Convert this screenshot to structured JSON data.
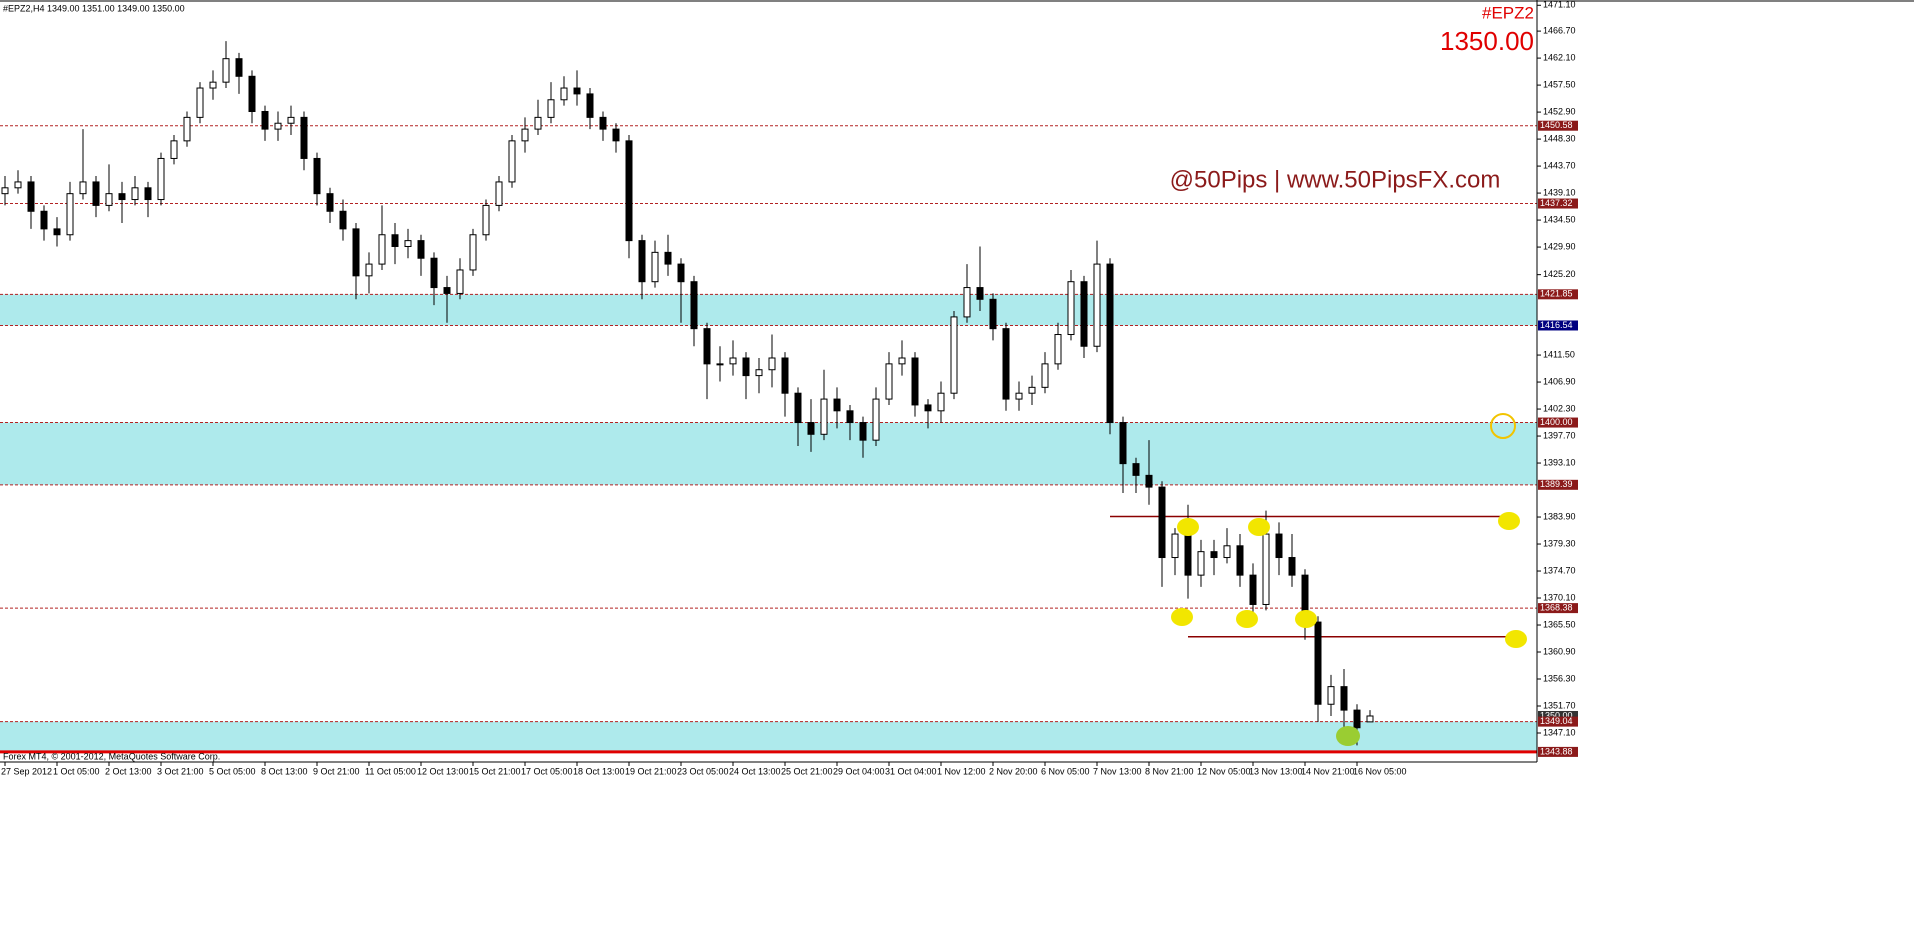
{
  "chart_data": {
    "type": "candlestick",
    "header": "#EPZ2,H4  1349.00 1351.00 1349.00 1350.00",
    "symbol": "#EPZ2",
    "price": "1350.00",
    "watermark": "@50Pips | www.50PipsFX.com",
    "copyright": "Forex MT4, © 2001-2012, MetaQuotes Software Corp.",
    "categories": [
      "27 Sep 2012",
      null,
      null,
      null,
      "1 Oct 05:00",
      null,
      null,
      null,
      "2 Oct 13:00",
      null,
      null,
      null,
      "3 Oct 21:00",
      null,
      null,
      null,
      "5 Oct 05:00",
      null,
      null,
      null,
      "8 Oct 13:00",
      null,
      null,
      null,
      "9 Oct 21:00",
      null,
      null,
      null,
      "11 Oct 05:00",
      null,
      null,
      null,
      "12 Oct 13:00",
      null,
      null,
      null,
      "15 Oct 21:00",
      null,
      null,
      null,
      "17 Oct 05:00",
      null,
      null,
      null,
      "18 Oct 13:00",
      null,
      null,
      null,
      "19 Oct 21:00",
      null,
      null,
      null,
      "23 Oct 05:00",
      null,
      null,
      null,
      "24 Oct 13:00",
      null,
      null,
      null,
      "25 Oct 21:00",
      null,
      null,
      null,
      "29 Oct 04:00",
      null,
      null,
      null,
      "31 Oct 04:00",
      null,
      null,
      null,
      "1 Nov 12:00",
      null,
      null,
      null,
      "2 Nov 20:00",
      null,
      null,
      null,
      "6 Nov 05:00",
      null,
      null,
      null,
      "7 Nov 13:00",
      null,
      null,
      null,
      "8 Nov 21:00",
      null,
      null,
      null,
      "12 Nov 05:00",
      null,
      null,
      null,
      "13 Nov 13:00",
      null,
      null,
      null,
      "14 Nov 21:00",
      null,
      null,
      null,
      "16 Nov 05:00",
      null
    ],
    "ohlc": [
      [
        1439,
        1442,
        1437,
        1440
      ],
      [
        1440,
        1443,
        1439,
        1441
      ],
      [
        1441,
        1442,
        1433,
        1436
      ],
      [
        1436,
        1437,
        1431,
        1433
      ],
      [
        1433,
        1435,
        1430,
        1432
      ],
      [
        1432,
        1441,
        1431,
        1439
      ],
      [
        1439,
        1450,
        1438,
        1441
      ],
      [
        1441,
        1442,
        1435,
        1437
      ],
      [
        1437,
        1444,
        1436,
        1439
      ],
      [
        1439,
        1441,
        1434,
        1438
      ],
      [
        1438,
        1442,
        1437,
        1440
      ],
      [
        1440,
        1441,
        1435,
        1438
      ],
      [
        1438,
        1446,
        1437,
        1445
      ],
      [
        1445,
        1449,
        1444,
        1448
      ],
      [
        1448,
        1453,
        1447,
        1452
      ],
      [
        1452,
        1458,
        1451,
        1457
      ],
      [
        1457,
        1460,
        1455,
        1458
      ],
      [
        1458,
        1465,
        1457,
        1462
      ],
      [
        1462,
        1463,
        1456,
        1459
      ],
      [
        1459,
        1460,
        1451,
        1453
      ],
      [
        1453,
        1454,
        1448,
        1450
      ],
      [
        1450,
        1453,
        1448,
        1451
      ],
      [
        1451,
        1454,
        1449,
        1452
      ],
      [
        1452,
        1453,
        1443,
        1445
      ],
      [
        1445,
        1446,
        1437,
        1439
      ],
      [
        1439,
        1440,
        1434,
        1436
      ],
      [
        1436,
        1438,
        1431,
        1433
      ],
      [
        1433,
        1434,
        1421,
        1425
      ],
      [
        1425,
        1429,
        1422,
        1427
      ],
      [
        1427,
        1437,
        1426,
        1432
      ],
      [
        1432,
        1434,
        1427,
        1430
      ],
      [
        1430,
        1433,
        1428,
        1431
      ],
      [
        1431,
        1432,
        1425,
        1428
      ],
      [
        1428,
        1429,
        1420,
        1423
      ],
      [
        1423,
        1425,
        1417,
        1422
      ],
      [
        1422,
        1428,
        1421,
        1426
      ],
      [
        1426,
        1433,
        1425,
        1432
      ],
      [
        1432,
        1438,
        1431,
        1437
      ],
      [
        1437,
        1442,
        1436,
        1441
      ],
      [
        1441,
        1449,
        1440,
        1448
      ],
      [
        1448,
        1452,
        1446,
        1450
      ],
      [
        1450,
        1455,
        1449,
        1452
      ],
      [
        1452,
        1458,
        1451,
        1455
      ],
      [
        1455,
        1459,
        1454,
        1457
      ],
      [
        1457,
        1460,
        1454,
        1456
      ],
      [
        1456,
        1457,
        1450,
        1452
      ],
      [
        1452,
        1453,
        1448,
        1450
      ],
      [
        1450,
        1451,
        1446,
        1448
      ],
      [
        1448,
        1449,
        1428,
        1431
      ],
      [
        1431,
        1432,
        1421,
        1424
      ],
      [
        1424,
        1431,
        1423,
        1429
      ],
      [
        1429,
        1432,
        1425,
        1427
      ],
      [
        1427,
        1428,
        1417,
        1424
      ],
      [
        1424,
        1425,
        1413,
        1416
      ],
      [
        1416,
        1417,
        1404,
        1410
      ],
      [
        1410,
        1413,
        1407,
        1410
      ],
      [
        1410,
        1414,
        1408,
        1411
      ],
      [
        1411,
        1412,
        1404,
        1408
      ],
      [
        1408,
        1411,
        1405,
        1409
      ],
      [
        1409,
        1415,
        1406,
        1411
      ],
      [
        1411,
        1412,
        1401,
        1405
      ],
      [
        1405,
        1406,
        1396,
        1400
      ],
      [
        1400,
        1404,
        1395,
        1398
      ],
      [
        1398,
        1409,
        1397,
        1404
      ],
      [
        1404,
        1406,
        1399,
        1402
      ],
      [
        1402,
        1403,
        1397,
        1400
      ],
      [
        1400,
        1401,
        1394,
        1397
      ],
      [
        1397,
        1406,
        1396,
        1404
      ],
      [
        1404,
        1412,
        1403,
        1410
      ],
      [
        1410,
        1414,
        1408,
        1411
      ],
      [
        1411,
        1412,
        1401,
        1403
      ],
      [
        1403,
        1404,
        1399,
        1402
      ],
      [
        1402,
        1407,
        1400,
        1405
      ],
      [
        1405,
        1419,
        1404,
        1418
      ],
      [
        1418,
        1427,
        1417,
        1423
      ],
      [
        1423,
        1430,
        1419,
        1421
      ],
      [
        1421,
        1422,
        1414,
        1416
      ],
      [
        1416,
        1417,
        1402,
        1404
      ],
      [
        1404,
        1407,
        1402,
        1405
      ],
      [
        1405,
        1408,
        1403,
        1406
      ],
      [
        1406,
        1412,
        1405,
        1410
      ],
      [
        1410,
        1417,
        1409,
        1415
      ],
      [
        1415,
        1426,
        1414,
        1424
      ],
      [
        1424,
        1425,
        1411,
        1413
      ],
      [
        1413,
        1431,
        1412,
        1427
      ],
      [
        1427,
        1428,
        1398,
        1400
      ],
      [
        1400,
        1401,
        1388,
        1393
      ],
      [
        1393,
        1394,
        1388,
        1391
      ],
      [
        1391,
        1397,
        1386,
        1389
      ],
      [
        1389,
        1390,
        1372,
        1377
      ],
      [
        1377,
        1382,
        1374,
        1381
      ],
      [
        1381,
        1386,
        1370,
        1374
      ],
      [
        1374,
        1380,
        1372,
        1378
      ],
      [
        1378,
        1380,
        1374,
        1377
      ],
      [
        1377,
        1382,
        1376,
        1379
      ],
      [
        1379,
        1381,
        1372,
        1374
      ],
      [
        1374,
        1376,
        1367,
        1369
      ],
      [
        1369,
        1385,
        1368,
        1381
      ],
      [
        1381,
        1383,
        1374,
        1377
      ],
      [
        1377,
        1381,
        1372,
        1374
      ],
      [
        1374,
        1375,
        1363,
        1366
      ],
      [
        1366,
        1367,
        1349,
        1352
      ],
      [
        1352,
        1357,
        1350,
        1355
      ],
      [
        1355,
        1358,
        1347,
        1351
      ],
      [
        1351,
        1352,
        1345,
        1348
      ],
      [
        1349,
        1351,
        1349,
        1350
      ]
    ],
    "ylim": [
      1342.5,
      1472
    ],
    "yticks": [
      {
        "value": 1471.1,
        "label": "1471.10"
      },
      {
        "value": 1466.7,
        "label": "1466.70"
      },
      {
        "value": 1462.1,
        "label": "1462.10"
      },
      {
        "value": 1457.5,
        "label": "1457.50"
      },
      {
        "value": 1452.9,
        "label": "1452.90"
      },
      {
        "value": 1448.3,
        "label": "1448.30"
      },
      {
        "value": 1443.7,
        "label": "1443.70"
      },
      {
        "value": 1439.1,
        "label": "1439.10"
      },
      {
        "value": 1434.5,
        "label": "1434.50"
      },
      {
        "value": 1429.9,
        "label": "1429.90"
      },
      {
        "value": 1425.2,
        "label": "1425.20"
      },
      {
        "value": 1411.5,
        "label": "1411.50"
      },
      {
        "value": 1406.9,
        "label": "1406.90"
      },
      {
        "value": 1402.3,
        "label": "1402.30"
      },
      {
        "value": 1397.7,
        "label": "1397.70"
      },
      {
        "value": 1393.1,
        "label": "1393.10"
      },
      {
        "value": 1383.9,
        "label": "1383.90"
      },
      {
        "value": 1379.3,
        "label": "1379.30"
      },
      {
        "value": 1374.7,
        "label": "1374.70"
      },
      {
        "value": 1370.1,
        "label": "1370.10"
      },
      {
        "value": 1365.5,
        "label": "1365.50"
      },
      {
        "value": 1360.9,
        "label": "1360.90"
      },
      {
        "value": 1356.3,
        "label": "1356.30"
      },
      {
        "value": 1351.7,
        "label": "1351.70"
      },
      {
        "value": 1347.1,
        "label": "1347.10"
      }
    ],
    "levels": [
      {
        "value": 1450.58,
        "label": "1450.58",
        "color": "#8b1a1a"
      },
      {
        "value": 1437.32,
        "label": "1437.32",
        "color": "#8b1a1a"
      },
      {
        "value": 1421.85,
        "label": "1421.85",
        "color": "#8b1a1a"
      },
      {
        "value": 1416.54,
        "label": "1416.54",
        "color": "#000080"
      },
      {
        "value": 1400,
        "label": "1400.00",
        "color": "#8b1a1a"
      },
      {
        "value": 1389.39,
        "label": "1389.39",
        "color": "#8b1a1a"
      },
      {
        "value": 1368.38,
        "label": "1368.38",
        "color": "#8b1a1a"
      },
      {
        "value": 1350,
        "label": "1350.00",
        "color": "#333333"
      },
      {
        "value": 1349.04,
        "label": "1349.04",
        "color": "#8b1a1a"
      },
      {
        "value": 1343.88,
        "label": "1343.88",
        "color": "#8b1a1a"
      }
    ],
    "trend_lines": [
      1384,
      1363.5
    ],
    "zone_color": "#aeeaec",
    "up_color": "#ffffff",
    "down_color": "#000000"
  }
}
